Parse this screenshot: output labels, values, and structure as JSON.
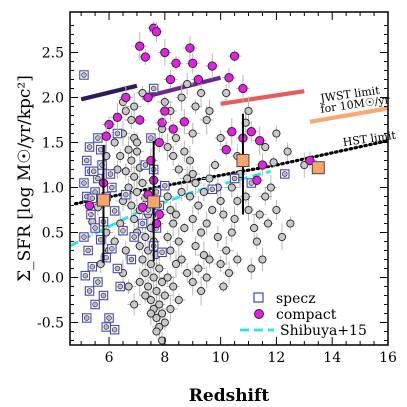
{
  "chart_data": {
    "type": "scatter",
    "xlabel": "Redshift",
    "ylabel": "Σ_SFR [log M☉/yr/kpc²]",
    "xlim": [
      4.6,
      16
    ],
    "ylim": [
      -0.75,
      2.95
    ],
    "x_ticks": [
      6,
      8,
      10,
      12,
      14,
      16
    ],
    "y_ticks": [
      -0.5,
      0.0,
      0.5,
      1.0,
      1.5,
      2.0,
      2.5
    ],
    "grid": false,
    "legend_position": "bottom-right",
    "legend": [
      {
        "label": "specz",
        "marker": "open-square",
        "color": "#4040cc"
      },
      {
        "label": "compact",
        "marker": "filled-circle",
        "color": "#e81ee8"
      },
      {
        "label": "Shibuya+15",
        "marker": "dashed-line",
        "color": "#22e6f0"
      }
    ],
    "annotations": [
      {
        "text": "JWST limit",
        "x": 13.6,
        "y": 1.95
      },
      {
        "text": "for 10M☉/yr",
        "x": 13.6,
        "y": 1.83
      },
      {
        "text": "HST limit",
        "x": 14.4,
        "y": 1.46
      }
    ],
    "limit_lines": [
      {
        "name": "JWST limit segment 1",
        "color": "#2d1b57",
        "points": [
          [
            5.0,
            1.98
          ],
          [
            7.0,
            2.13
          ]
        ]
      },
      {
        "name": "JWST limit segment 2",
        "color": "#6b2a8a",
        "points": [
          [
            7.2,
            2.0
          ],
          [
            10.0,
            2.22
          ]
        ]
      },
      {
        "name": "JWST limit segment 3",
        "color": "#e85a5a",
        "points": [
          [
            10.0,
            1.93
          ],
          [
            13.0,
            2.07
          ]
        ]
      },
      {
        "name": "JWST limit segment 4",
        "color": "#f8a870",
        "points": [
          [
            13.2,
            1.73
          ],
          [
            16.0,
            1.88
          ]
        ]
      }
    ],
    "hst_limit": {
      "color": "#000000",
      "points": [
        [
          4.8,
          0.82
        ],
        [
          8.0,
          1.02
        ],
        [
          12.0,
          1.25
        ],
        [
          16.0,
          1.52
        ]
      ]
    },
    "shibuya": {
      "name": "Shibuya+15",
      "color": "#22e6f0",
      "points": [
        [
          4.6,
          0.35
        ],
        [
          7.0,
          0.72
        ],
        [
          9.0,
          0.95
        ],
        [
          11.8,
          1.18
        ]
      ]
    },
    "binned_medians": [
      {
        "x": 5.8,
        "y": 0.86,
        "ylo": 0.16,
        "yhi": 1.47
      },
      {
        "x": 7.6,
        "y": 0.84,
        "ylo": 0.18,
        "yhi": 1.52
      },
      {
        "x": 10.8,
        "y": 1.3,
        "ylo": 0.7,
        "yhi": 1.82
      },
      {
        "x": 13.5,
        "y": 1.22,
        "ylo": 1.22,
        "yhi": 1.22
      }
    ],
    "specz": [
      [
        5.1,
        2.25
      ],
      [
        5.2,
        1.3
      ],
      [
        5.3,
        1.18
      ],
      [
        5.1,
        1.05
      ],
      [
        5.2,
        0.9
      ],
      [
        5.35,
        0.7
      ],
      [
        5.1,
        0.45
      ],
      [
        5.25,
        0.3
      ],
      [
        5.4,
        0.12
      ],
      [
        5.15,
        0.02
      ],
      [
        5.3,
        -0.15
      ],
      [
        5.5,
        -0.3
      ],
      [
        5.2,
        -0.45
      ],
      [
        5.6,
        1.55
      ],
      [
        5.7,
        1.42
      ],
      [
        5.6,
        1.1
      ],
      [
        5.5,
        0.95
      ],
      [
        5.8,
        0.62
      ],
      [
        5.7,
        0.42
      ],
      [
        5.9,
        0.22
      ],
      [
        5.6,
        -0.05
      ],
      [
        5.8,
        -0.2
      ],
      [
        6.0,
        -0.45
      ],
      [
        5.5,
        0.55
      ],
      [
        5.4,
        0.88
      ],
      [
        6.1,
        1.0
      ],
      [
        6.2,
        0.74
      ],
      [
        6.1,
        0.32
      ],
      [
        6.3,
        0.1
      ],
      [
        6.4,
        -0.1
      ],
      [
        5.9,
        -0.55
      ],
      [
        6.2,
        -0.58
      ],
      [
        5.3,
        1.45
      ],
      [
        6.5,
        0.52
      ],
      [
        6.6,
        0.92
      ],
      [
        5.45,
        1.18
      ],
      [
        5.75,
        1.25
      ],
      [
        6.05,
        1.15
      ],
      [
        6.3,
        1.6
      ],
      [
        5.9,
        0.9
      ],
      [
        7.6,
        2.1
      ],
      [
        7.5,
        1.55
      ],
      [
        7.6,
        1.2
      ],
      [
        7.7,
        0.95
      ],
      [
        7.8,
        0.8
      ],
      [
        7.7,
        0.55
      ],
      [
        7.6,
        0.35
      ],
      [
        7.9,
        0.28
      ],
      [
        7.4,
        0.75
      ],
      [
        7.3,
        1.25
      ],
      [
        8.0,
        1.02
      ],
      [
        11.1,
        1.05
      ],
      [
        12.3,
        1.15
      ],
      [
        9.7,
        0.98
      ],
      [
        10.5,
        1.1
      ],
      [
        7.2,
        0.6
      ],
      [
        6.8,
        0.2
      ],
      [
        6.9,
        0.45
      ]
    ],
    "compact": [
      [
        7.6,
        2.77
      ],
      [
        7.7,
        2.73
      ],
      [
        8.0,
        2.5
      ],
      [
        8.4,
        2.38
      ],
      [
        9.0,
        2.38
      ],
      [
        7.1,
        2.57
      ],
      [
        7.3,
        2.45
      ],
      [
        8.9,
        2.55
      ],
      [
        9.2,
        2.2
      ],
      [
        8.2,
        2.2
      ],
      [
        9.7,
        2.35
      ],
      [
        10.5,
        2.46
      ],
      [
        10.3,
        2.22
      ],
      [
        10.8,
        2.1
      ],
      [
        7.4,
        2.0
      ],
      [
        6.6,
        2.0
      ],
      [
        6.3,
        1.78
      ],
      [
        6.0,
        1.7
      ],
      [
        5.9,
        1.57
      ],
      [
        7.1,
        1.75
      ],
      [
        7.9,
        1.72
      ],
      [
        8.7,
        1.73
      ],
      [
        8.3,
        1.65
      ],
      [
        7.8,
        1.5
      ],
      [
        10.4,
        1.62
      ],
      [
        10.8,
        1.55
      ],
      [
        11.1,
        1.62
      ],
      [
        11.4,
        1.52
      ],
      [
        10.2,
        1.42
      ],
      [
        11.5,
        1.25
      ],
      [
        11.3,
        1.08
      ],
      [
        13.2,
        1.3
      ],
      [
        7.5,
        1.3
      ],
      [
        7.6,
        1.08
      ],
      [
        7.4,
        0.92
      ],
      [
        7.2,
        0.78
      ],
      [
        5.8,
        1.05
      ],
      [
        5.3,
        0.8
      ],
      [
        7.8,
        0.7
      ],
      [
        7.7,
        0.6
      ],
      [
        8.0,
        1.85
      ]
    ],
    "other": [
      [
        6.6,
        1.85
      ],
      [
        6.8,
        1.75
      ],
      [
        6.5,
        1.6
      ],
      [
        6.9,
        1.55
      ],
      [
        7.0,
        1.5
      ],
      [
        6.7,
        1.42
      ],
      [
        6.4,
        1.35
      ],
      [
        6.8,
        1.3
      ],
      [
        7.1,
        1.22
      ],
      [
        6.6,
        1.18
      ],
      [
        6.9,
        1.12
      ],
      [
        7.2,
        1.05
      ],
      [
        6.7,
        1.0
      ],
      [
        7.0,
        0.95
      ],
      [
        7.3,
        0.88
      ],
      [
        6.5,
        0.85
      ],
      [
        6.8,
        0.8
      ],
      [
        7.1,
        0.75
      ],
      [
        7.4,
        0.7
      ],
      [
        6.9,
        0.65
      ],
      [
        7.2,
        0.6
      ],
      [
        7.5,
        0.55
      ],
      [
        7.0,
        0.5
      ],
      [
        7.3,
        0.45
      ],
      [
        7.6,
        0.4
      ],
      [
        7.1,
        0.35
      ],
      [
        7.4,
        0.3
      ],
      [
        7.7,
        0.25
      ],
      [
        7.2,
        0.2
      ],
      [
        7.5,
        0.15
      ],
      [
        7.8,
        0.1
      ],
      [
        7.3,
        0.05
      ],
      [
        7.6,
        0.0
      ],
      [
        7.9,
        -0.05
      ],
      [
        7.4,
        -0.1
      ],
      [
        7.7,
        -0.15
      ],
      [
        8.0,
        -0.2
      ],
      [
        7.5,
        -0.25
      ],
      [
        7.8,
        -0.3
      ],
      [
        7.6,
        -0.35
      ],
      [
        7.9,
        -0.4
      ],
      [
        7.7,
        -0.45
      ],
      [
        8.0,
        -0.5
      ],
      [
        7.8,
        -0.55
      ],
      [
        8.1,
        0.9
      ],
      [
        8.2,
        0.75
      ],
      [
        8.3,
        0.6
      ],
      [
        8.1,
        0.45
      ],
      [
        8.2,
        0.3
      ],
      [
        8.4,
        0.15
      ],
      [
        8.1,
        0.0
      ],
      [
        8.3,
        -0.1
      ],
      [
        8.5,
        0.4
      ],
      [
        8.6,
        0.2
      ],
      [
        8.4,
        0.7
      ],
      [
        8.7,
        0.55
      ],
      [
        8.6,
        0.95
      ],
      [
        8.8,
        1.1
      ],
      [
        8.5,
        1.2
      ],
      [
        8.3,
        1.35
      ],
      [
        8.1,
        1.45
      ],
      [
        8.4,
        1.55
      ],
      [
        8.7,
        1.4
      ],
      [
        8.9,
        1.3
      ],
      [
        9.0,
        1.15
      ],
      [
        9.1,
        1.05
      ],
      [
        8.9,
        0.9
      ],
      [
        9.2,
        0.8
      ],
      [
        9.0,
        0.65
      ],
      [
        9.3,
        0.5
      ],
      [
        9.1,
        0.35
      ],
      [
        9.4,
        0.25
      ],
      [
        9.2,
        0.1
      ],
      [
        9.5,
        0.0
      ],
      [
        9.3,
        -0.15
      ],
      [
        9.6,
        0.2
      ],
      [
        9.5,
        0.6
      ],
      [
        9.7,
        0.75
      ],
      [
        9.4,
        0.95
      ],
      [
        9.6,
        1.1
      ],
      [
        9.8,
        1.25
      ],
      [
        9.9,
        1.0
      ],
      [
        10.0,
        0.85
      ],
      [
        10.1,
        0.7
      ],
      [
        9.9,
        0.45
      ],
      [
        10.2,
        0.3
      ],
      [
        10.0,
        0.15
      ],
      [
        10.3,
        0.05
      ],
      [
        10.1,
        -0.1
      ],
      [
        10.4,
        0.5
      ],
      [
        10.5,
        0.65
      ],
      [
        10.6,
        0.85
      ],
      [
        10.4,
        1.0
      ],
      [
        10.7,
        1.15
      ],
      [
        10.9,
        0.9
      ],
      [
        11.0,
        0.75
      ],
      [
        11.2,
        0.55
      ],
      [
        11.3,
        0.4
      ],
      [
        11.5,
        0.2
      ],
      [
        11.4,
        0.7
      ],
      [
        11.6,
        0.9
      ],
      [
        11.8,
        1.0
      ],
      [
        11.7,
        0.6
      ],
      [
        12.0,
        0.75
      ],
      [
        12.2,
        0.45
      ],
      [
        12.5,
        0.6
      ],
      [
        9.0,
        1.6
      ],
      [
        9.5,
        1.75
      ],
      [
        10.0,
        1.55
      ],
      [
        10.6,
        1.35
      ],
      [
        11.9,
        1.28
      ],
      [
        12.4,
        1.4
      ],
      [
        13.0,
        1.25
      ],
      [
        8.0,
        1.95
      ],
      [
        8.2,
        1.85
      ],
      [
        8.6,
        2.0
      ],
      [
        9.1,
        1.9
      ],
      [
        9.6,
        1.85
      ],
      [
        11.0,
        1.85
      ],
      [
        12.0,
        1.6
      ],
      [
        7.9,
        1.65
      ],
      [
        7.0,
        1.4
      ],
      [
        6.3,
        1.2
      ],
      [
        6.4,
        0.6
      ],
      [
        6.2,
        0.4
      ],
      [
        6.6,
        0.3
      ],
      [
        6.5,
        0.05
      ],
      [
        6.7,
        -0.1
      ],
      [
        6.9,
        -0.3
      ],
      [
        7.1,
        -0.05
      ],
      [
        7.3,
        -0.2
      ],
      [
        7.5,
        -0.4
      ],
      [
        7.7,
        -0.6
      ],
      [
        7.9,
        -0.7
      ],
      [
        8.2,
        -0.35
      ],
      [
        8.5,
        -0.25
      ],
      [
        8.8,
        0.05
      ],
      [
        9.0,
        -0.05
      ],
      [
        10.6,
        0.2
      ],
      [
        11.1,
        0.1
      ],
      [
        5.4,
        0.62
      ],
      [
        5.6,
        0.78
      ],
      [
        5.9,
        0.5
      ],
      [
        6.0,
        0.3
      ],
      [
        5.7,
        0.15
      ],
      [
        5.9,
        1.35
      ],
      [
        6.2,
        1.5
      ],
      [
        6.5,
        1.95
      ],
      [
        6.9,
        1.9
      ],
      [
        7.2,
        2.05
      ],
      [
        8.8,
        2.15
      ],
      [
        9.3,
        2.05
      ],
      [
        10.2,
        2.05
      ],
      [
        10.9,
        1.72
      ],
      [
        11.6,
        1.45
      ]
    ]
  }
}
